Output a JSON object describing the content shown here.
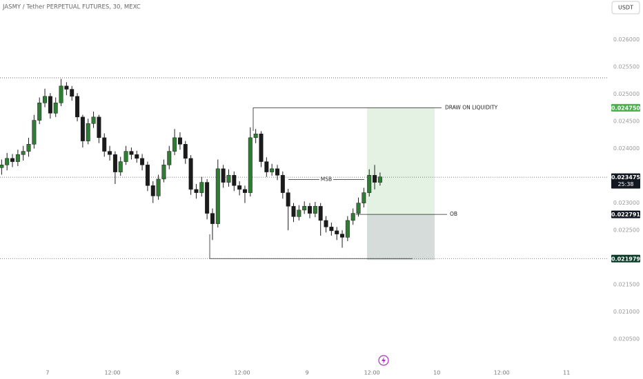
{
  "header": {
    "title": "JASMY / Tether PERPETUAL FUTURES, 30, MEXC",
    "currency": "USDT"
  },
  "chart_data": {
    "type": "candlestick",
    "up_color": "#2e7d32",
    "down_color": "#1b1b1b",
    "open": [
      0.02365,
      0.0237,
      0.02382,
      0.02376,
      0.02389,
      0.02395,
      0.02408,
      0.02452,
      0.02484,
      0.02496,
      0.02465,
      0.02484,
      0.02515,
      0.02509,
      0.02496,
      0.02458,
      0.02414,
      0.02446,
      0.02458,
      0.0242,
      0.02395,
      0.02389,
      0.02357,
      0.02376,
      0.02395,
      0.02389,
      0.02382,
      0.0237,
      0.02332,
      0.02313,
      0.02344,
      0.0237,
      0.02395,
      0.0242,
      0.02408,
      0.02382,
      0.02325,
      0.02319,
      0.02338,
      0.02281,
      0.02262,
      0.02363,
      0.02338,
      0.02351,
      0.02332,
      0.02325,
      0.02319,
      0.0242,
      0.02427,
      0.02376,
      0.02357,
      0.02363,
      0.02351,
      0.02319,
      0.02294,
      0.02275,
      0.02287,
      0.02294,
      0.02281,
      0.02294,
      0.02268,
      0.02256,
      0.02249,
      0.02243,
      0.02237,
      0.02268,
      0.02281,
      0.023,
      0.02319,
      0.02351,
      0.02338
    ],
    "high": [
      0.0238,
      0.02392,
      0.0239,
      0.02398,
      0.02405,
      0.0242,
      0.02462,
      0.02494,
      0.0251,
      0.02502,
      0.02494,
      0.02528,
      0.02522,
      0.02515,
      0.02502,
      0.02462,
      0.02455,
      0.02468,
      0.02462,
      0.02428,
      0.02405,
      0.02395,
      0.02385,
      0.02405,
      0.02402,
      0.02396,
      0.0239,
      0.02376,
      0.0234,
      0.02352,
      0.0238,
      0.02405,
      0.02436,
      0.0243,
      0.02414,
      0.02388,
      0.02335,
      0.02348,
      0.02344,
      0.0229,
      0.0238,
      0.0237,
      0.02362,
      0.02358,
      0.0234,
      0.02332,
      0.02439,
      0.02436,
      0.02432,
      0.02384,
      0.02372,
      0.0237,
      0.02358,
      0.02326,
      0.023,
      0.02296,
      0.02303,
      0.023,
      0.02302,
      0.023,
      0.02276,
      0.02264,
      0.02256,
      0.0225,
      0.02276,
      0.0229,
      0.0231,
      0.02328,
      0.02362,
      0.0237,
      0.02356
    ],
    "low": [
      0.02352,
      0.0236,
      0.02366,
      0.02368,
      0.02378,
      0.02385,
      0.024,
      0.02445,
      0.02476,
      0.02455,
      0.02458,
      0.02478,
      0.02498,
      0.02488,
      0.0245,
      0.02402,
      0.02408,
      0.02438,
      0.0241,
      0.02385,
      0.02378,
      0.02335,
      0.0235,
      0.0237,
      0.0238,
      0.02374,
      0.0236,
      0.02322,
      0.023,
      0.02306,
      0.02338,
      0.02362,
      0.02388,
      0.02398,
      0.02372,
      0.02315,
      0.02308,
      0.02312,
      0.0227,
      0.02232,
      0.02255,
      0.02328,
      0.0233,
      0.02322,
      0.02314,
      0.023,
      0.02312,
      0.0241,
      0.02366,
      0.02348,
      0.0235,
      0.02342,
      0.02308,
      0.0225,
      0.02265,
      0.02268,
      0.0228,
      0.02272,
      0.02274,
      0.0224,
      0.02246,
      0.0224,
      0.02232,
      0.02218,
      0.0223,
      0.0226,
      0.02275,
      0.02292,
      0.02312,
      0.02325,
      0.02332
    ],
    "close": [
      0.0237,
      0.02382,
      0.02376,
      0.02389,
      0.02395,
      0.02408,
      0.02452,
      0.02484,
      0.02496,
      0.02465,
      0.02484,
      0.02515,
      0.02509,
      0.02496,
      0.02458,
      0.02414,
      0.02446,
      0.02458,
      0.0242,
      0.02395,
      0.02389,
      0.02357,
      0.02376,
      0.02395,
      0.02389,
      0.02382,
      0.0237,
      0.02332,
      0.02313,
      0.02344,
      0.0237,
      0.02395,
      0.0242,
      0.02408,
      0.02382,
      0.02325,
      0.02319,
      0.02338,
      0.02281,
      0.02262,
      0.02363,
      0.02338,
      0.02351,
      0.02332,
      0.02325,
      0.02319,
      0.0242,
      0.02427,
      0.02376,
      0.02357,
      0.02363,
      0.02351,
      0.02319,
      0.02294,
      0.02275,
      0.02287,
      0.02294,
      0.02281,
      0.02294,
      0.02268,
      0.02256,
      0.02249,
      0.02243,
      0.02237,
      0.02268,
      0.02281,
      0.023,
      0.02319,
      0.02351,
      0.02338,
      0.02348
    ],
    "xlim": [
      -0.3,
      112
    ],
    "xticks": [
      {
        "value": 8.5,
        "label": "7"
      },
      {
        "value": 20.5,
        "label": "12:00"
      },
      {
        "value": 32.5,
        "label": "8"
      },
      {
        "value": 44.5,
        "label": "12:00"
      },
      {
        "value": 56.5,
        "label": "9"
      },
      {
        "value": 68.5,
        "label": "12:00"
      },
      {
        "value": 80.5,
        "label": "10"
      },
      {
        "value": 92.5,
        "label": "12:00"
      },
      {
        "value": 104.5,
        "label": "11"
      }
    ],
    "ylim": [
      0.02002,
      0.02673
    ],
    "yticks": [
      {
        "value": 0.0205,
        "label": "0.020500"
      },
      {
        "value": 0.021,
        "label": "0.021000"
      },
      {
        "value": 0.0215,
        "label": "0.021500"
      },
      {
        "value": 0.0225,
        "label": "0.022500"
      },
      {
        "value": 0.023,
        "label": "0.023000"
      },
      {
        "value": 0.024,
        "label": "0.024000"
      },
      {
        "value": 0.0245,
        "label": "0.024500"
      },
      {
        "value": 0.025,
        "label": "0.025000"
      },
      {
        "value": 0.0255,
        "label": "0.025500"
      },
      {
        "value": 0.026,
        "label": "0.026000"
      }
    ],
    "levels": [
      0.0253,
      0.023475,
      0.021979
    ],
    "price_labels": [
      {
        "value": 0.02475,
        "label": "0.024750",
        "color": "#4caf50"
      },
      {
        "value": 0.023475,
        "label": "0.023475",
        "color": "#131722",
        "countdown": "25:38"
      },
      {
        "value": 0.022791,
        "label": "0.022791",
        "color": "#131722"
      },
      {
        "value": 0.021979,
        "label": "0.021979",
        "color": "#0b3d2a"
      }
    ],
    "annotations": [
      {
        "text": "DRAW ON LIQUIDITY",
        "value": 0.02475
      },
      {
        "text": "MSB",
        "value": 0.02343
      },
      {
        "text": "OB",
        "value": 0.022791
      }
    ]
  }
}
